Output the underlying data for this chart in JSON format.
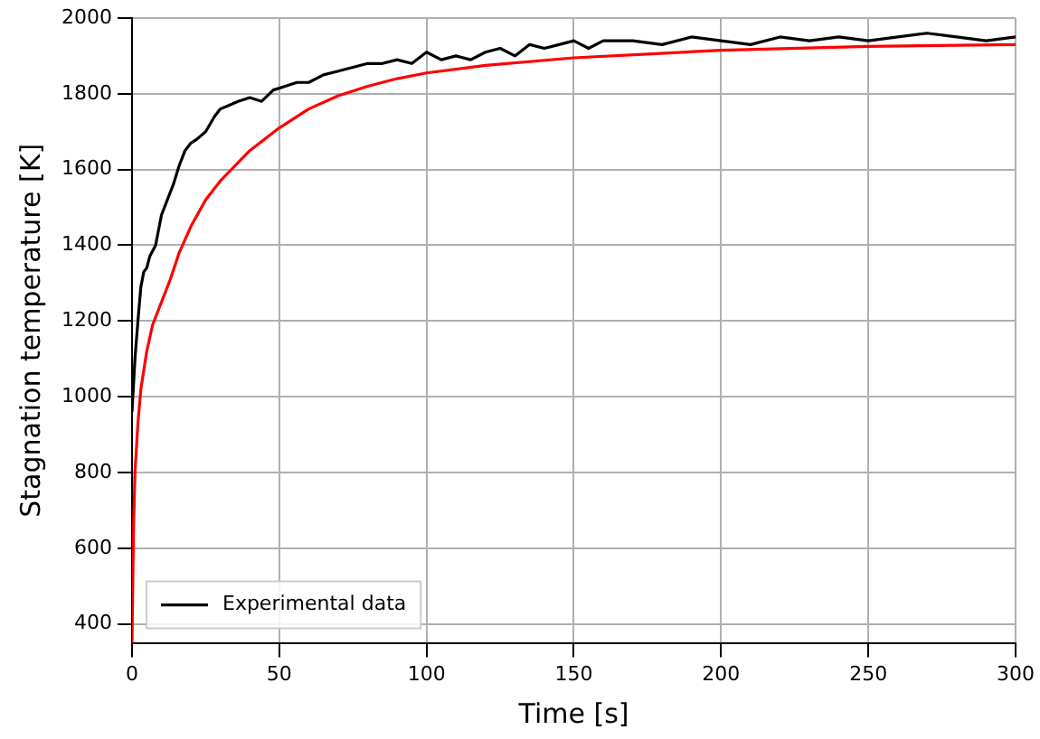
{
  "chart_data": {
    "type": "line",
    "xlabel": "Time [s]",
    "ylabel": "Stagnation temperature [K]",
    "xlim": [
      0,
      300
    ],
    "xticks": [
      0,
      50,
      100,
      150,
      200,
      250,
      300
    ],
    "ylim": [
      350,
      2000
    ],
    "yticks": [
      400,
      600,
      800,
      1000,
      1200,
      1400,
      1600,
      1800,
      2000
    ],
    "grid": true,
    "legend": "bottom left",
    "marker": "none",
    "line_style": "solid",
    "series": [
      {
        "name": "Experimental data",
        "color": "#000000",
        "x": [
          0,
          1,
          2,
          3,
          4,
          5,
          6,
          8,
          10,
          12,
          14,
          16,
          18,
          20,
          22,
          25,
          28,
          30,
          33,
          36,
          40,
          44,
          48,
          52,
          56,
          60,
          65,
          70,
          75,
          80,
          85,
          90,
          95,
          100,
          105,
          110,
          115,
          120,
          125,
          130,
          135,
          140,
          145,
          150,
          155,
          160,
          170,
          180,
          190,
          200,
          210,
          220,
          230,
          240,
          250,
          260,
          270,
          280,
          290,
          300
        ],
        "values": [
          960,
          1100,
          1200,
          1290,
          1330,
          1340,
          1370,
          1400,
          1480,
          1520,
          1560,
          1610,
          1650,
          1670,
          1680,
          1700,
          1740,
          1760,
          1770,
          1780,
          1790,
          1780,
          1810,
          1820,
          1830,
          1830,
          1850,
          1860,
          1870,
          1880,
          1880,
          1890,
          1880,
          1910,
          1890,
          1900,
          1890,
          1910,
          1920,
          1900,
          1930,
          1920,
          1930,
          1940,
          1920,
          1940,
          1940,
          1930,
          1950,
          1940,
          1930,
          1950,
          1940,
          1950,
          1940,
          1950,
          1960,
          1950,
          1940,
          1950
        ]
      },
      {
        "color": "#ff0000",
        "x": [
          0,
          0.5,
          1,
          2,
          3,
          5,
          7,
          10,
          13,
          16,
          20,
          25,
          30,
          35,
          40,
          50,
          60,
          70,
          80,
          90,
          100,
          120,
          150,
          175,
          200,
          250,
          300
        ],
        "values": [
          350,
          650,
          800,
          930,
          1020,
          1120,
          1190,
          1250,
          1310,
          1380,
          1450,
          1520,
          1570,
          1610,
          1650,
          1710,
          1760,
          1795,
          1820,
          1840,
          1855,
          1875,
          1895,
          1905,
          1915,
          1925,
          1930
        ]
      }
    ]
  }
}
